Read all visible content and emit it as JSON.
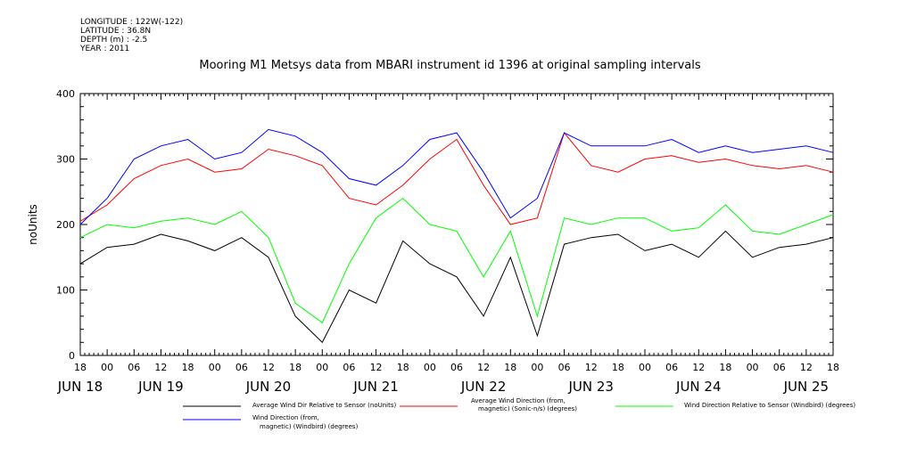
{
  "meta": {
    "longitude": "LONGITUDE : 122W(-122)",
    "latitude": "LATITUDE : 36.8N",
    "depth": "DEPTH (m) : -2.5",
    "year": "YEAR : 2011"
  },
  "chart_data": {
    "type": "line",
    "title": "Mooring M1 Metsys data from MBARI instrument id 1396 at original sampling intervals",
    "ylabel": "noUnits",
    "ylim": [
      0,
      400
    ],
    "y_ticks": [
      0,
      100,
      200,
      300,
      400
    ],
    "x_unit": "hours since JUN 18 18:00, 2011",
    "xlim": [
      0,
      168
    ],
    "hour_labels": [
      "18",
      "00",
      "06",
      "12",
      "18",
      "00",
      "06",
      "12",
      "18",
      "00",
      "06",
      "12",
      "18",
      "00",
      "06",
      "12",
      "18",
      "00",
      "06",
      "12",
      "18",
      "00",
      "06",
      "12",
      "18",
      "00",
      "06",
      "12",
      "18"
    ],
    "day_labels": [
      {
        "label": "JUN 18",
        "hour": 0
      },
      {
        "label": "JUN 19",
        "hour": 18
      },
      {
        "label": "JUN 20",
        "hour": 42
      },
      {
        "label": "JUN 21",
        "hour": 66
      },
      {
        "label": "JUN 22",
        "hour": 90
      },
      {
        "label": "JUN 23",
        "hour": 114
      },
      {
        "label": "JUN 24",
        "hour": 138
      },
      {
        "label": "JUN 25",
        "hour": 162
      }
    ],
    "x": [
      0,
      6,
      12,
      18,
      24,
      30,
      36,
      42,
      48,
      54,
      60,
      66,
      72,
      78,
      84,
      90,
      96,
      102,
      108,
      114,
      120,
      126,
      132,
      138,
      144,
      150,
      156,
      162,
      168
    ],
    "series": [
      {
        "name": "Average Wind Dir Relative to Sensor (noUnits)",
        "color": "#000000",
        "values": [
          140,
          165,
          170,
          185,
          175,
          160,
          180,
          150,
          60,
          20,
          100,
          80,
          175,
          140,
          120,
          60,
          150,
          30,
          170,
          180,
          185,
          160,
          170,
          150,
          190,
          150,
          165,
          170,
          180
        ]
      },
      {
        "name": "Average Wind Direction (from, magnetic) (Sonic-n/s) (degrees)",
        "color": "#ff0000",
        "values": [
          205,
          230,
          270,
          290,
          300,
          280,
          285,
          315,
          305,
          290,
          240,
          230,
          260,
          300,
          330,
          260,
          200,
          210,
          340,
          290,
          280,
          300,
          305,
          295,
          300,
          290,
          285,
          290,
          280
        ]
      },
      {
        "name": "Wind Direction Relative to Sensor (Windbird) (degrees)",
        "color": "#00ff00",
        "values": [
          180,
          200,
          195,
          205,
          210,
          200,
          220,
          180,
          80,
          50,
          140,
          210,
          240,
          200,
          190,
          120,
          190,
          60,
          210,
          200,
          210,
          210,
          190,
          195,
          230,
          190,
          185,
          200,
          215
        ]
      },
      {
        "name": "Wind Direction (from, magnetic) (Windbird) (degrees)",
        "color": "#0000ff",
        "values": [
          200,
          240,
          300,
          320,
          330,
          300,
          310,
          345,
          335,
          310,
          270,
          260,
          290,
          330,
          340,
          280,
          210,
          240,
          340,
          320,
          320,
          320,
          330,
          310,
          320,
          310,
          315,
          320,
          310
        ]
      }
    ],
    "legend": {
      "placement": "bottom",
      "entries": [
        "Average Wind Dir Relative to Sensor (noUnits)",
        "Average Wind Direction (from, magnetic) (Sonic-n/s) (degrees)",
        "Wind Direction Relative to Sensor (Windbird) (degrees)",
        "Wind Direction (from, magnetic) (Windbird) (degrees)"
      ]
    },
    "grid": false
  }
}
